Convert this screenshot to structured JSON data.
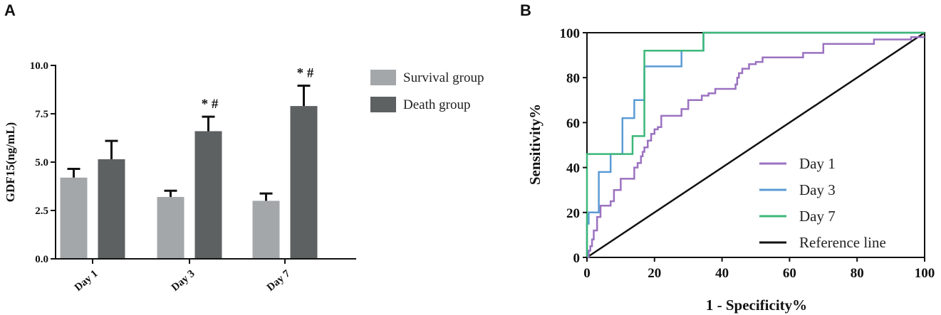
{
  "panel_a_label": "A",
  "panel_b_label": "B",
  "chart_data": [
    {
      "type": "bar",
      "title": "",
      "xlabel": "",
      "ylabel": "GDF15(ng/mL)",
      "ylim": [
        0,
        10
      ],
      "yticks": [
        0,
        2.5,
        5,
        7.5,
        10
      ],
      "ytick_labels": [
        "0.0",
        "2.5",
        "5.0",
        "7.5",
        "10.0"
      ],
      "categories": [
        "Day 1",
        "Day 3",
        "Day 7"
      ],
      "series": [
        {
          "name": "Survival group",
          "color": "#a4a7aa",
          "values": [
            4.2,
            3.2,
            3.0
          ],
          "errors": [
            0.45,
            0.32,
            0.38
          ]
        },
        {
          "name": "Death group",
          "color": "#5d6161",
          "values": [
            5.15,
            6.6,
            7.9
          ],
          "errors": [
            0.95,
            0.75,
            1.05
          ]
        }
      ],
      "annotations": [
        {
          "category": "Day 3",
          "series": "Death group",
          "text": "* #"
        },
        {
          "category": "Day 7",
          "series": "Death group",
          "text": "* #"
        }
      ],
      "legend_position": "top-right"
    },
    {
      "type": "line",
      "title": "",
      "xlabel": "1 - Specificity%",
      "ylabel": "Sensitivity%",
      "xlim": [
        0,
        100
      ],
      "ylim": [
        0,
        100
      ],
      "xticks": [
        0,
        20,
        40,
        60,
        80,
        100
      ],
      "yticks": [
        0,
        20,
        40,
        60,
        80,
        100
      ],
      "legend_position": "bottom-right",
      "series": [
        {
          "name": "Day 1",
          "color": "#9b72c0",
          "x": [
            0,
            0.5,
            0.5,
            1,
            1,
            1.5,
            1.5,
            2,
            2,
            3,
            3,
            4,
            4,
            6,
            6,
            7,
            7,
            8,
            8,
            10,
            10,
            14,
            14,
            15,
            15,
            16,
            16,
            16.5,
            16.5,
            17,
            17,
            18,
            18,
            19,
            19,
            20,
            20,
            21,
            21,
            22,
            22,
            26,
            26,
            28,
            28,
            30,
            30,
            33,
            33,
            34,
            34,
            36,
            36,
            38,
            38,
            44,
            44,
            44.5,
            44.5,
            45,
            45,
            46,
            46,
            48,
            48,
            50,
            50,
            52,
            52,
            56,
            56,
            60,
            60,
            64,
            64,
            66,
            66,
            70,
            70,
            85,
            85,
            96,
            96,
            100
          ],
          "y": [
            0,
            0,
            3,
            3,
            5,
            5,
            8,
            8,
            12,
            12,
            18,
            18,
            23,
            23,
            23,
            23,
            25,
            25,
            30,
            30,
            35,
            35,
            40,
            40,
            42,
            42,
            45,
            45,
            47,
            47,
            49,
            49,
            52,
            52,
            55,
            55,
            57,
            57,
            58,
            58,
            63,
            63,
            63,
            63,
            66,
            66,
            70,
            70,
            70,
            70,
            72,
            72,
            73,
            73,
            75,
            75,
            77,
            77,
            80,
            80,
            82,
            82,
            84,
            84,
            86,
            86,
            87,
            87,
            89,
            89,
            89,
            89,
            89,
            89,
            91,
            91,
            91,
            91,
            95,
            95,
            97,
            97,
            98,
            98
          ]
        },
        {
          "name": "Day 3",
          "color": "#5b9bd5",
          "x": [
            0,
            0,
            0.5,
            0.5,
            3.5,
            3.5,
            7,
            7,
            10.5,
            10.5,
            14,
            14,
            17,
            17,
            28,
            28,
            34.5,
            34.5,
            100
          ],
          "y": [
            0,
            15,
            15,
            20,
            20,
            38,
            38,
            46,
            46,
            62,
            62,
            70,
            70,
            85,
            85,
            92,
            92,
            100,
            100
          ]
        },
        {
          "name": "Day 7",
          "color": "#3cb87a",
          "x": [
            0,
            0,
            3.5,
            3.5,
            13.5,
            13.5,
            17,
            17,
            34.5,
            34.5,
            100
          ],
          "y": [
            0,
            46,
            46,
            46,
            46,
            54,
            54,
            92,
            92,
            100,
            100
          ]
        },
        {
          "name": "Reference line",
          "color": "#111111",
          "x": [
            0,
            100
          ],
          "y": [
            0,
            100
          ]
        }
      ]
    }
  ]
}
